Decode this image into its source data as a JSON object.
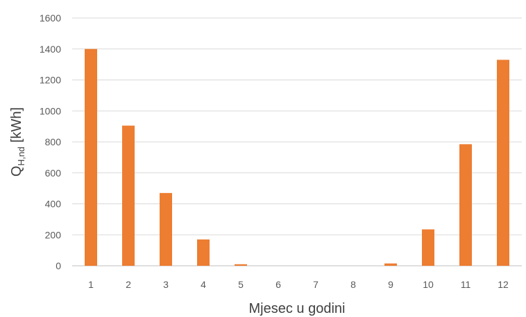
{
  "chart_data": {
    "type": "bar",
    "categories": [
      "1",
      "2",
      "3",
      "4",
      "5",
      "6",
      "7",
      "8",
      "9",
      "10",
      "11",
      "12"
    ],
    "values": [
      1400,
      905,
      470,
      170,
      10,
      0,
      0,
      0,
      15,
      235,
      785,
      1330
    ],
    "title": "",
    "xlabel": "Mjesec u godini",
    "ylabel_main": "Q",
    "ylabel_sub": "H,nd",
    "ylabel_unit": "[kWh]",
    "ylim": [
      0,
      1600
    ],
    "yticks": [
      0,
      200,
      400,
      600,
      800,
      1000,
      1200,
      1400,
      1600
    ],
    "grid": true,
    "legend": "none",
    "bar_color": "#ED7D31"
  }
}
